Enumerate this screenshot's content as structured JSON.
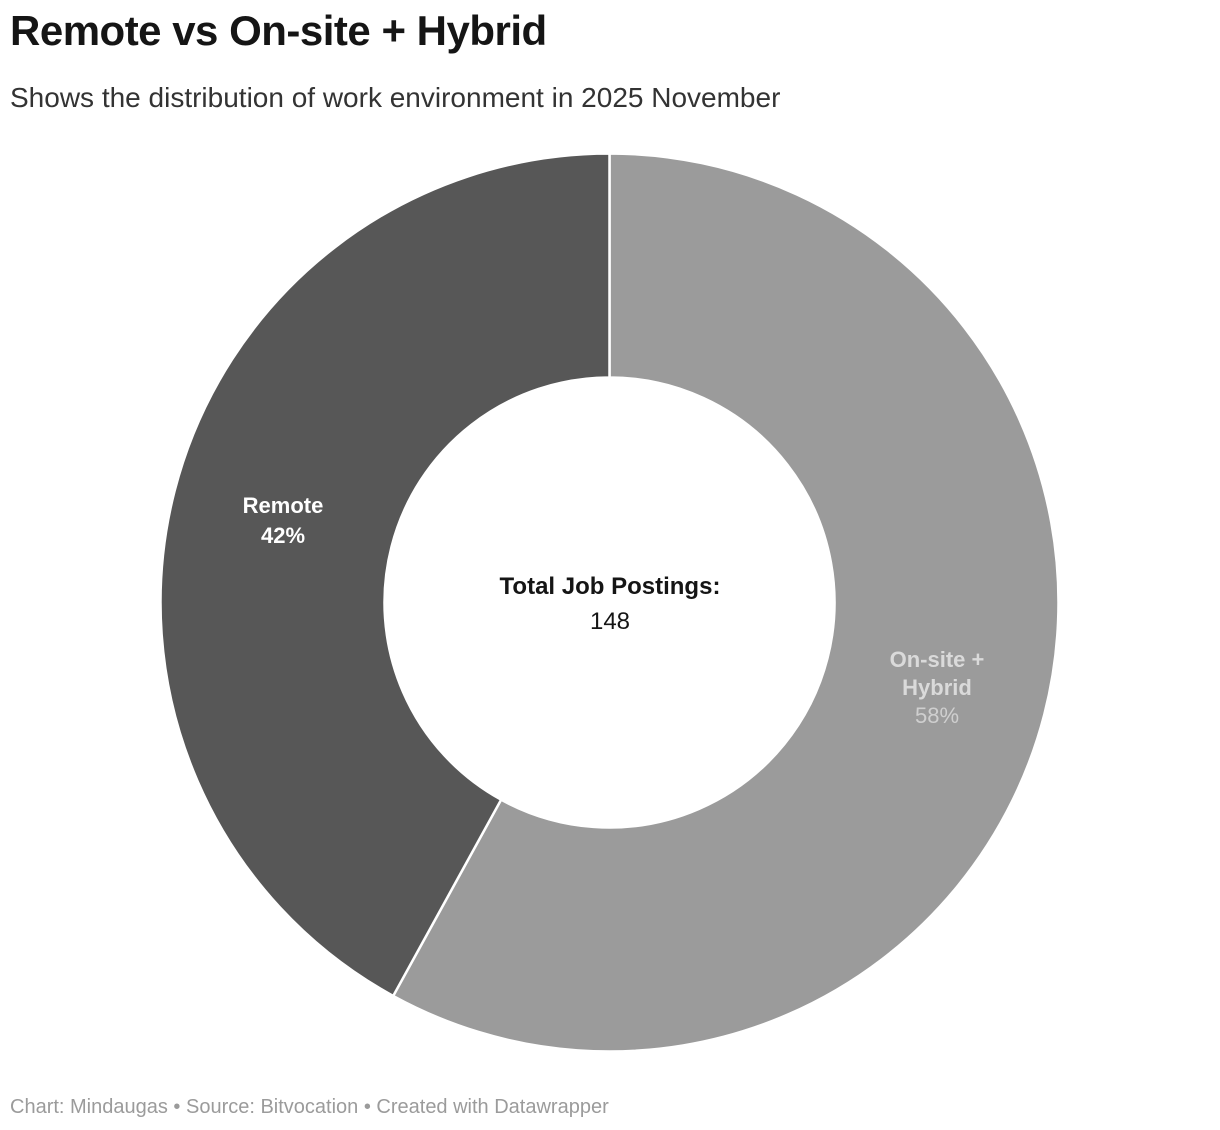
{
  "header": {
    "title": "Remote vs On-site + Hybrid",
    "subtitle": "Shows the distribution of work environment in 2025 November"
  },
  "chart_data": {
    "type": "pie",
    "variant": "donut",
    "title": "Remote vs On-site + Hybrid",
    "start_angle_deg": 0,
    "direction": "clockwise",
    "inner_radius_ratio": 0.5,
    "legend": "none",
    "slices": [
      {
        "label": "On-site + Hybrid",
        "value": 58,
        "display_value": "58%",
        "color": "#9b9b9b",
        "label_color": "#dadada",
        "value_color": "#cfcfcf",
        "value_bold": false
      },
      {
        "label": "Remote",
        "value": 42,
        "display_value": "42%",
        "color": "#575757",
        "label_color": "#ffffff",
        "value_color": "#ffffff",
        "value_bold": true
      }
    ],
    "center_label": {
      "line1": "Total Job Postings:",
      "line2": "148"
    },
    "total": 148,
    "separator_color": "#ffffff"
  },
  "footer": {
    "text": "Chart: Mindaugas • Source: Bitvocation • Created with Datawrapper"
  }
}
